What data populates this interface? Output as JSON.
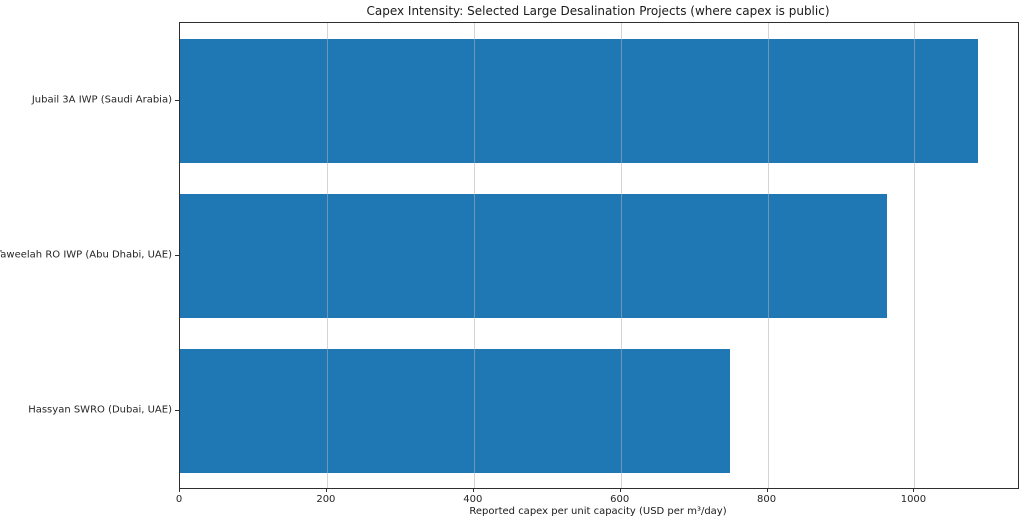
{
  "figure": {
    "background": "#ffffff",
    "text_color": "#262626"
  },
  "chart_data": {
    "type": "bar",
    "orientation": "horizontal",
    "title": "Capex Intensity: Selected Large Desalination Projects (where capex is public)",
    "categories": [
      "Jubail 3A IWP (Saudi Arabia)",
      "Taweelah RO IWP (Abu Dhabi, UAE)",
      "Hassyan SWRO (Dubai, UAE)"
    ],
    "values": [
      1086,
      963,
      749
    ],
    "xlabel": "Reported capex per unit capacity (USD per m³/day)",
    "ylabel": "",
    "xlim": [
      0,
      1141
    ],
    "xticks": [
      0,
      200,
      400,
      600,
      800,
      1000
    ],
    "grid": "vertical-only",
    "grid_above_bars": true,
    "legend": "none",
    "bar_color": "#1f77b4",
    "grid_color": "#b0b0b0",
    "bar_relative_height": 0.8
  }
}
